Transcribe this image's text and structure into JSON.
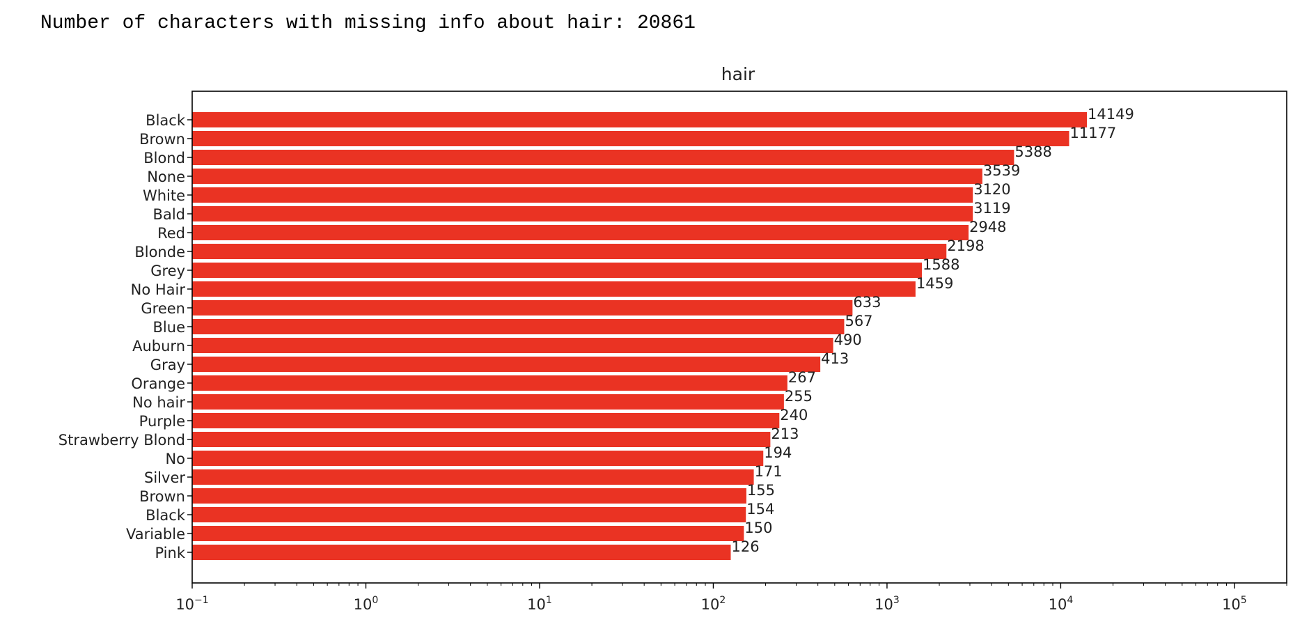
{
  "output": {
    "text": "Number of characters with missing info about hair: 20861"
  },
  "colors": {
    "bar": "#ea3323",
    "axis": "#000000",
    "text": "#222222",
    "background": "#ffffff"
  },
  "chart_data": {
    "type": "bar",
    "orientation": "horizontal",
    "title": "hair",
    "xscale": "log",
    "xlim": [
      0.1,
      200000
    ],
    "xticks": [
      {
        "value": 0.1,
        "base": "10",
        "exp": "−1"
      },
      {
        "value": 1,
        "base": "10",
        "exp": "0"
      },
      {
        "value": 10,
        "base": "10",
        "exp": "1"
      },
      {
        "value": 100,
        "base": "10",
        "exp": "2"
      },
      {
        "value": 1000,
        "base": "10",
        "exp": "3"
      },
      {
        "value": 10000,
        "base": "10",
        "exp": "4"
      },
      {
        "value": 100000,
        "base": "10",
        "exp": "5"
      }
    ],
    "grid": false,
    "bar_labels": true,
    "categories": [
      "Black",
      "Brown",
      "Blond",
      "None",
      "White",
      "Bald",
      "Red",
      "Blonde",
      "Grey",
      "No Hair",
      "Green",
      "Blue",
      "Auburn",
      "Gray",
      "Orange",
      "No hair",
      "Purple",
      "Strawberry Blond",
      "No",
      "Silver",
      "Brown ",
      "Black ",
      "Variable",
      "Pink"
    ],
    "values": [
      14149,
      11177,
      5388,
      3539,
      3120,
      3119,
      2948,
      2198,
      1588,
      1459,
      633,
      567,
      490,
      413,
      267,
      255,
      240,
      213,
      194,
      171,
      155,
      154,
      150,
      126
    ]
  }
}
